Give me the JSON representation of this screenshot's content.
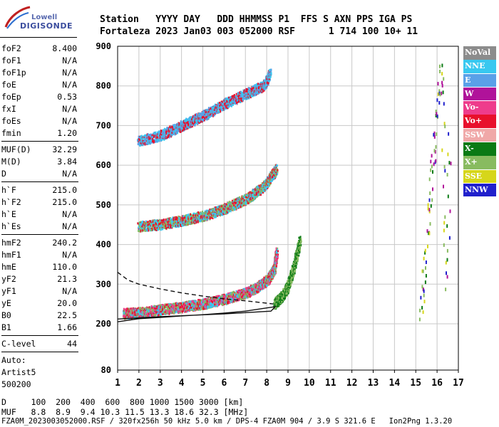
{
  "header": {
    "logo_brand": "Lowell",
    "logo_product": "DIGISONDE",
    "line1": "Station   YYYY DAY   DDD HHMMSS P1  FFS S AXN PPS IGA PS",
    "line2": "Fortaleza 2023 Jan03 003 052000 RSF      1 714 100 10+ 11"
  },
  "sidebar": {
    "groups": [
      [
        [
          "foF2",
          "8.400"
        ],
        [
          "foF1",
          "N/A"
        ],
        [
          "foF1p",
          "N/A"
        ],
        [
          "foE",
          "N/A"
        ],
        [
          "foEp",
          "0.53"
        ],
        [
          "fxI",
          "N/A"
        ],
        [
          "foEs",
          "N/A"
        ],
        [
          "fmin",
          "1.20"
        ]
      ],
      [
        [
          "MUF(D)",
          "32.29"
        ],
        [
          "M(D)",
          "3.84"
        ],
        [
          "D",
          "N/A"
        ]
      ],
      [
        [
          "h`F",
          "215.0"
        ],
        [
          "h`F2",
          "215.0"
        ],
        [
          "h`E",
          "N/A"
        ],
        [
          "h`Es",
          "N/A"
        ]
      ],
      [
        [
          "hmF2",
          "240.2"
        ],
        [
          "hmF1",
          "N/A"
        ],
        [
          "hmE",
          "110.0"
        ],
        [
          "yF2",
          "21.3"
        ],
        [
          "yF1",
          "N/A"
        ],
        [
          "yE",
          "20.0"
        ],
        [
          "B0",
          "22.5"
        ],
        [
          "B1",
          "1.66"
        ]
      ],
      [
        [
          "C-level",
          "44"
        ]
      ]
    ],
    "auto_lines": [
      "Auto:",
      "Artist5",
      "500200"
    ]
  },
  "legend": [
    {
      "label": "NoVal",
      "color": "#8c8c8c"
    },
    {
      "label": "NNE",
      "color": "#38c8f0"
    },
    {
      "label": "E",
      "color": "#5aa0e8"
    },
    {
      "label": "W",
      "color": "#b0129a"
    },
    {
      "label": "Vo-",
      "color": "#ee3c8c"
    },
    {
      "label": "Vo+",
      "color": "#e8102c"
    },
    {
      "label": "SSW",
      "color": "#f0a8a8"
    },
    {
      "label": "X-",
      "color": "#0a7a14"
    },
    {
      "label": "X+",
      "color": "#88bb60"
    },
    {
      "label": "SSE",
      "color": "#d6d61a"
    },
    {
      "label": "NNW",
      "color": "#2020cc"
    }
  ],
  "footer": {
    "d_line": "D     100  200  400  600  800 1000 1500 3000 [km]",
    "muf_line": "MUF   8.8  8.9  9.4 10.3 11.5 13.3 18.6 32.3 [MHz]",
    "file_line": "FZA0M_2023003052000.RSF / 320fx256h 50 kHz 5.0 km / DPS-4 FZA0M 904 / 3.9 S 321.6 E   Ion2Png 1.3.20"
  },
  "chart_data": {
    "type": "scatter",
    "title": "",
    "xlabel": "",
    "ylabel": "",
    "xlim": [
      1,
      17
    ],
    "ylim": [
      80,
      900
    ],
    "x_ticks": [
      1,
      2,
      3,
      4,
      5,
      6,
      7,
      8,
      9,
      10,
      11,
      12,
      13,
      14,
      15,
      16,
      17
    ],
    "y_ticks": [
      80,
      200,
      300,
      400,
      500,
      600,
      700,
      800,
      900
    ],
    "grid": true,
    "y_break": {
      "between": [
        80,
        200
      ],
      "note": "nonlinear lower segment"
    },
    "traces": [
      {
        "name": "F2 O-trace 1st hop",
        "x": [
          1.2,
          2.0,
          3.0,
          4.0,
          5.0,
          6.0,
          7.0,
          7.5,
          8.0,
          8.3,
          8.4
        ],
        "y": [
          215,
          218,
          225,
          232,
          240,
          252,
          268,
          282,
          300,
          330,
          370
        ],
        "series": [
          "Vo+",
          "Vo-",
          "NNE",
          "X+"
        ]
      },
      {
        "name": "F2 X-trace",
        "x": [
          8.3,
          8.6,
          8.9,
          9.2,
          9.5
        ],
        "y": [
          240,
          255,
          280,
          330,
          400
        ],
        "series": [
          "X+",
          "X-"
        ]
      },
      {
        "name": "2nd hop",
        "x": [
          1.9,
          3.0,
          4.0,
          5.0,
          6.0,
          7.0,
          7.8,
          8.4
        ],
        "y": [
          435,
          440,
          450,
          462,
          480,
          505,
          535,
          580
        ],
        "series": [
          "Vo+",
          "NNE",
          "X+"
        ]
      },
      {
        "name": "3rd hop",
        "x": [
          1.9,
          3.0,
          4.0,
          5.0,
          6.0,
          7.0,
          7.8,
          8.1
        ],
        "y": [
          650,
          665,
          690,
          715,
          745,
          770,
          790,
          820
        ],
        "series": [
          "Vo+",
          "NNE",
          "E"
        ]
      },
      {
        "name": "spread F interference",
        "x": [
          15.2,
          15.4,
          15.6,
          15.8,
          16.0,
          16.2,
          16.4,
          16.6
        ],
        "y": [
          220,
          350,
          500,
          620,
          760,
          850,
          300,
          700
        ],
        "series": [
          "X-",
          "X+",
          "SSE",
          "NNW",
          "W"
        ]
      }
    ],
    "model_curves": [
      {
        "name": "model solid",
        "x": [
          1.0,
          2.0,
          3.0,
          4.0,
          5.0,
          6.0,
          7.0,
          8.0,
          8.4,
          8.2,
          6.0,
          3.0,
          1.0
        ],
        "y": [
          205,
          213,
          216,
          220,
          223,
          227,
          232,
          240,
          243,
          232,
          225,
          218,
          212
        ]
      },
      {
        "name": "model dashed",
        "x": [
          1.0,
          1.5,
          2.0,
          3.0,
          4.0,
          5.0,
          6.0,
          7.0,
          8.0,
          8.3
        ],
        "y": [
          330,
          310,
          300,
          288,
          278,
          270,
          263,
          258,
          252,
          250
        ]
      }
    ]
  }
}
